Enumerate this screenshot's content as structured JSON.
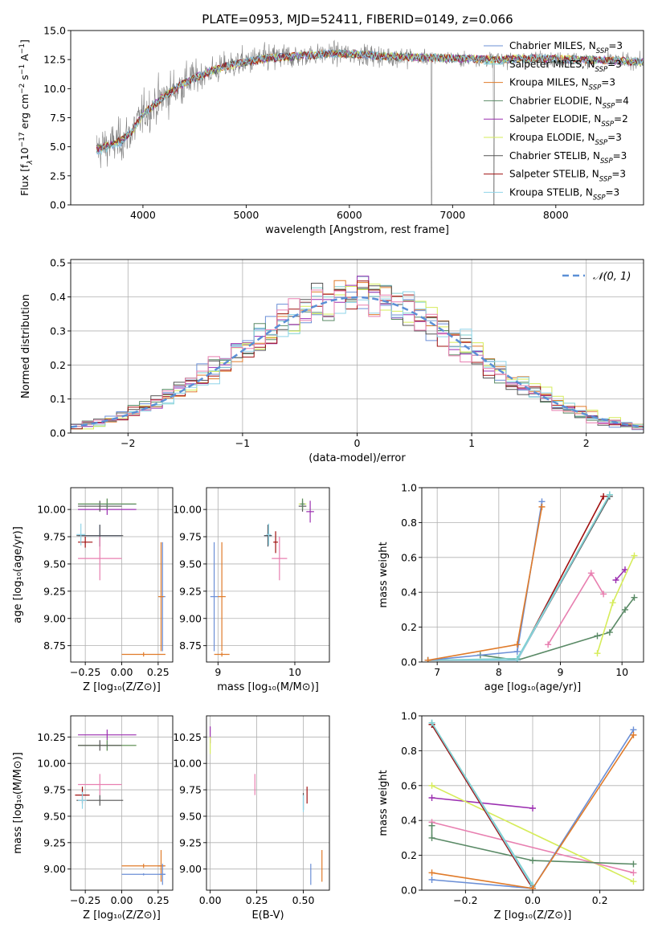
{
  "figure_title": "PLATE=0953, MJD=52411, FIBERID=0149, z=0.066",
  "colors": {
    "Chabrier MILES": "#6b8fd6",
    "Salpeter MILES": "#7fd0d0",
    "Kroupa MILES": "#e07b2a",
    "Chabrier ELODIE": "#5a8a66",
    "Salpeter ELODIE": "#9b2fb0",
    "Kroupa ELODIE": "#d6ec5a",
    "Chabrier STELIB": "#555555",
    "Salpeter STELIB": "#a01010",
    "Kroupa STELIB": "#8fd4e8",
    "ELODIE_pink": "#e87fb0",
    "observed": "#808080",
    "normal_fit": "#5b8fd6",
    "grid": "#b0b0b0"
  },
  "chart_data": [
    {
      "id": "spectrum",
      "type": "line",
      "title": "PLATE=0953, MJD=52411, FIBERID=0149, z=0.066",
      "xlabel": "wavelength [Angstrom, rest frame]",
      "ylabel": "Flux [f_λ 10^-17 erg cm^-2 s^-1 A^-1]",
      "ylabel_parts": [
        "Flux [f",
        "λ",
        "10",
        "−17",
        " erg cm",
        "−2",
        " s",
        "−1",
        " A",
        "−1",
        "]"
      ],
      "xlim": [
        3300,
        8850
      ],
      "ylim": [
        0,
        15
      ],
      "xticks": [
        4000,
        5000,
        6000,
        7000,
        8000
      ],
      "yticks": [
        0.0,
        2.5,
        5.0,
        7.5,
        10.0,
        12.5,
        15.0
      ],
      "grid": false,
      "legend_position": "right",
      "legend": [
        {
          "label": "Chabrier MILES, N",
          "sub": "SSP",
          "suffix": "=3",
          "color": "#6b8fd6"
        },
        {
          "label": "Salpeter MILES, N",
          "sub": "SSP",
          "suffix": "=3",
          "color": "#7fd0d0"
        },
        {
          "label": "Kroupa MILES, N",
          "sub": "SSP",
          "suffix": "=3",
          "color": "#e07b2a"
        },
        {
          "label": "Chabrier ELODIE, N",
          "sub": "SSP",
          "suffix": "=4",
          "color": "#5a8a66"
        },
        {
          "label": "Salpeter ELODIE, N",
          "sub": "SSP",
          "suffix": "=2",
          "color": "#9b2fb0"
        },
        {
          "label": "Kroupa ELODIE, N",
          "sub": "SSP",
          "suffix": "=3",
          "color": "#d6ec5a"
        },
        {
          "label": "Chabrier STELIB, N",
          "sub": "SSP",
          "suffix": "=3",
          "color": "#555555"
        },
        {
          "label": "Salpeter STELIB, N",
          "sub": "SSP",
          "suffix": "=3",
          "color": "#a01010"
        },
        {
          "label": "Kroupa STELIB, N",
          "sub": "SSP",
          "suffix": "=3",
          "color": "#8fd4e8"
        }
      ],
      "continuum": {
        "x": [
          3550,
          3700,
          3800,
          3900,
          4000,
          4200,
          4400,
          4600,
          4800,
          5000,
          5200,
          5500,
          5800,
          6000,
          6300,
          6600,
          7000,
          7400,
          7800,
          8200,
          8600,
          8850
        ],
        "y": [
          4.8,
          5.2,
          5.6,
          6.4,
          7.8,
          9.3,
          10.5,
          11.3,
          11.9,
          12.3,
          12.6,
          12.8,
          13.0,
          13.0,
          12.8,
          12.7,
          12.6,
          12.5,
          12.6,
          12.5,
          12.4,
          12.3
        ]
      }
    },
    {
      "id": "residuals",
      "type": "histogram",
      "xlabel": "(data-model)/error",
      "ylabel": "Normed distribution",
      "xlim": [
        -2.5,
        2.5
      ],
      "ylim": [
        0,
        0.51
      ],
      "xticks": [
        -2,
        -1,
        0,
        1,
        2
      ],
      "yticks": [
        0.0,
        0.1,
        0.2,
        0.3,
        0.4,
        0.5
      ],
      "grid": true,
      "legend_position": "top-right",
      "legend": [
        {
          "label": "𝒩(0, 1)",
          "style": "dashed",
          "color": "#5b8fd6"
        }
      ],
      "bin_width": 0.1
    },
    {
      "id": "age_vs_Z",
      "type": "errorbar",
      "xlabel": "Z [log₁₀(Z/Z⊙)]",
      "ylabel": "age  [log₁₀(age/yr)]",
      "xlim": [
        -0.35,
        0.35
      ],
      "ylim": [
        8.6,
        10.2
      ],
      "xticks": [
        -0.25,
        0.0,
        0.25
      ],
      "xticklabels": [
        "−0.25",
        "0.00",
        "0.25"
      ],
      "yticks": [
        8.75,
        9.0,
        9.25,
        9.5,
        9.75,
        10.0
      ],
      "grid": true,
      "points": [
        {
          "x": -0.1,
          "y": 10.05,
          "xerr": 0.2,
          "yerr": 0.05,
          "color": "#d6ec5a"
        },
        {
          "x": -0.1,
          "y": 10.0,
          "xerr": 0.2,
          "yerr": 0.05,
          "color": "#9b2fb0"
        },
        {
          "x": -0.15,
          "y": 10.03,
          "xerr": 0.15,
          "yerr": 0.05,
          "color": "#555555"
        },
        {
          "x": -0.1,
          "y": 10.05,
          "xerr": 0.2,
          "yerr": 0.05,
          "color": "#5a8a66"
        },
        {
          "x": -0.15,
          "y": 9.76,
          "xerr": 0.15,
          "yerr": 0.1,
          "color": "#6b8fd6"
        },
        {
          "x": -0.15,
          "y": 9.76,
          "xerr": 0.16,
          "yerr": 0.1,
          "color": "#555555"
        },
        {
          "x": -0.15,
          "y": 9.55,
          "xerr": 0.15,
          "yerr": 0.2,
          "color": "#e87fb0"
        },
        {
          "x": -0.25,
          "y": 9.7,
          "xerr": 0.05,
          "yerr": 0.05,
          "color": "#a01010"
        },
        {
          "x": -0.28,
          "y": 9.77,
          "xerr": 0.03,
          "yerr": 0.1,
          "color": "#8fd4e8"
        },
        {
          "x": 0.28,
          "y": 9.2,
          "xerr": 0.02,
          "yerr": 0.5,
          "color": "#6b8fd6"
        },
        {
          "x": 0.27,
          "y": 9.2,
          "xerr": 0.02,
          "yerr": 0.5,
          "color": "#e07b2a"
        },
        {
          "x": 0.15,
          "y": 8.67,
          "xerr": 0.15,
          "yerr": 0.02,
          "color": "#e07b2a"
        }
      ]
    },
    {
      "id": "age_vs_mass",
      "type": "errorbar",
      "xlabel": "mass [log₁₀(M/M⊙)]",
      "ylabel": "",
      "xlim": [
        8.85,
        10.45
      ],
      "ylim": [
        8.6,
        10.2
      ],
      "xticks": [
        9,
        10
      ],
      "yticks": [
        8.75,
        9.0,
        9.25,
        9.5,
        9.75,
        10.0
      ],
      "grid": true,
      "points": [
        {
          "x": 10.1,
          "y": 10.05,
          "xerr": 0.05,
          "yerr": 0.05,
          "color": "#d6ec5a"
        },
        {
          "x": 10.2,
          "y": 9.98,
          "xerr": 0.05,
          "yerr": 0.1,
          "color": "#9b2fb0"
        },
        {
          "x": 10.1,
          "y": 10.03,
          "xerr": 0.05,
          "yerr": 0.05,
          "color": "#555555"
        },
        {
          "x": 10.1,
          "y": 10.05,
          "xerr": 0.03,
          "yerr": 0.05,
          "color": "#5a8a66"
        },
        {
          "x": 9.65,
          "y": 9.76,
          "xerr": 0.05,
          "yerr": 0.1,
          "color": "#6b8fd6"
        },
        {
          "x": 9.65,
          "y": 9.76,
          "xerr": 0.05,
          "yerr": 0.1,
          "color": "#555555"
        },
        {
          "x": 9.8,
          "y": 9.55,
          "xerr": 0.1,
          "yerr": 0.2,
          "color": "#e87fb0"
        },
        {
          "x": 9.75,
          "y": 9.7,
          "xerr": 0.03,
          "yerr": 0.1,
          "color": "#a01010"
        },
        {
          "x": 9.66,
          "y": 9.77,
          "xerr": 0.03,
          "yerr": 0.1,
          "color": "#8fd4e8"
        },
        {
          "x": 8.95,
          "y": 9.2,
          "xerr": 0.05,
          "yerr": 0.5,
          "color": "#6b8fd6"
        },
        {
          "x": 9.05,
          "y": 9.2,
          "xerr": 0.05,
          "yerr": 0.5,
          "color": "#e07b2a"
        },
        {
          "x": 9.05,
          "y": 8.67,
          "xerr": 0.1,
          "yerr": 0.02,
          "color": "#e07b2a"
        }
      ]
    },
    {
      "id": "weight_vs_age",
      "type": "line",
      "xlabel": "age  [log₁₀(age/yr)]",
      "ylabel": "mass weight",
      "xlim": [
        6.75,
        10.35
      ],
      "ylim": [
        0,
        1
      ],
      "xticks": [
        7,
        8,
        9,
        10
      ],
      "yticks": [
        0.0,
        0.2,
        0.4,
        0.6,
        0.8,
        1.0
      ],
      "grid": true,
      "series": [
        {
          "color": "#5a8a66",
          "x": [
            7.7,
            8.3,
            9.6,
            9.8,
            10.05,
            10.2
          ],
          "y": [
            0.04,
            0.01,
            0.15,
            0.17,
            0.3,
            0.37
          ]
        },
        {
          "color": "#9b2fb0",
          "x": [
            9.9,
            10.05
          ],
          "y": [
            0.47,
            0.53
          ]
        },
        {
          "color": "#d6ec5a",
          "x": [
            9.6,
            9.85,
            10.2
          ],
          "y": [
            0.05,
            0.34,
            0.61
          ]
        },
        {
          "color": "#e87fb0",
          "x": [
            8.8,
            9.5,
            9.7
          ],
          "y": [
            0.1,
            0.51,
            0.39
          ]
        },
        {
          "color": "#555555",
          "x": [
            6.85,
            8.3,
            9.8
          ],
          "y": [
            0.01,
            0.01,
            0.95
          ]
        },
        {
          "color": "#a01010",
          "x": [
            6.85,
            8.3,
            9.7
          ],
          "y": [
            0.01,
            0.01,
            0.95
          ]
        },
        {
          "color": "#8fd4e8",
          "x": [
            6.85,
            8.3,
            9.8
          ],
          "y": [
            0.01,
            0.01,
            0.96
          ]
        },
        {
          "color": "#7fd0d0",
          "x": [
            6.85,
            8.3,
            9.8
          ],
          "y": [
            0.01,
            0.02,
            0.96
          ]
        },
        {
          "color": "#6b8fd6",
          "x": [
            6.85,
            8.3,
            8.7
          ],
          "y": [
            0.01,
            0.06,
            0.92
          ]
        },
        {
          "color": "#e07b2a",
          "x": [
            6.85,
            8.3,
            8.7
          ],
          "y": [
            0.01,
            0.1,
            0.89
          ]
        }
      ]
    },
    {
      "id": "mass_vs_Z",
      "type": "errorbar",
      "xlabel": "Z [log₁₀(Z/Z⊙)]",
      "ylabel": "mass [log₁₀(M/M⊙)]",
      "xlim": [
        -0.35,
        0.35
      ],
      "ylim": [
        8.8,
        10.45
      ],
      "xticks": [
        -0.25,
        0.0,
        0.25
      ],
      "xticklabels": [
        "−0.25",
        "0.00",
        "0.25"
      ],
      "yticks": [
        9.0,
        9.25,
        9.5,
        9.75,
        10.0,
        10.25
      ],
      "grid": true,
      "points": [
        {
          "x": -0.1,
          "y": 10.27,
          "xerr": 0.2,
          "yerr": 0.05,
          "color": "#9b2fb0"
        },
        {
          "x": -0.1,
          "y": 10.17,
          "xerr": 0.2,
          "yerr": 0.05,
          "color": "#d6ec5a"
        },
        {
          "x": -0.1,
          "y": 10.17,
          "xerr": 0.2,
          "yerr": 0.05,
          "color": "#5a8a66"
        },
        {
          "x": -0.15,
          "y": 10.17,
          "xerr": 0.15,
          "yerr": 0.05,
          "color": "#555555"
        },
        {
          "x": -0.15,
          "y": 9.8,
          "xerr": 0.15,
          "yerr": 0.1,
          "color": "#e87fb0"
        },
        {
          "x": -0.27,
          "y": 9.7,
          "xerr": 0.05,
          "yerr": 0.08,
          "color": "#a01010"
        },
        {
          "x": -0.15,
          "y": 9.65,
          "xerr": 0.16,
          "yerr": 0.05,
          "color": "#555555"
        },
        {
          "x": -0.27,
          "y": 9.65,
          "xerr": 0.03,
          "yerr": 0.08,
          "color": "#8fd4e8"
        },
        {
          "x": 0.27,
          "y": 9.03,
          "xerr": 0.02,
          "yerr": 0.15,
          "color": "#e07b2a"
        },
        {
          "x": 0.15,
          "y": 9.03,
          "xerr": 0.15,
          "yerr": 0.02,
          "color": "#e07b2a"
        },
        {
          "x": 0.28,
          "y": 8.95,
          "xerr": 0.02,
          "yerr": 0.1,
          "color": "#6b8fd6"
        },
        {
          "x": 0.15,
          "y": 8.95,
          "xerr": 0.15,
          "yerr": 0.01,
          "color": "#6b8fd6"
        }
      ]
    },
    {
      "id": "mass_vs_ebv",
      "type": "errorbar",
      "xlabel": "E(B-V)",
      "ylabel": "",
      "xlim": [
        -0.02,
        0.64
      ],
      "ylim": [
        8.8,
        10.45
      ],
      "xticks": [
        0.0,
        0.25,
        0.5
      ],
      "xticklabels": [
        "0.00",
        "0.25",
        "0.50"
      ],
      "yticks": [
        9.0,
        9.25,
        9.5,
        9.75,
        10.0,
        10.25
      ],
      "grid": true,
      "points": [
        {
          "x": 0.0,
          "y": 10.27,
          "xerr": 0.0,
          "yerr": 0.08,
          "color": "#9b2fb0"
        },
        {
          "x": 0.0,
          "y": 10.17,
          "xerr": 0.0,
          "yerr": 0.08,
          "color": "#d6ec5a"
        },
        {
          "x": 0.24,
          "y": 9.8,
          "xerr": 0.0,
          "yerr": 0.1,
          "color": "#e87fb0"
        },
        {
          "x": 0.52,
          "y": 9.7,
          "xerr": 0.0,
          "yerr": 0.08,
          "color": "#a01010"
        },
        {
          "x": 0.5,
          "y": 9.64,
          "xerr": 0.0,
          "yerr": 0.08,
          "color": "#555555"
        },
        {
          "x": 0.5,
          "y": 9.62,
          "xerr": 0.0,
          "yerr": 0.08,
          "color": "#8fd4e8"
        },
        {
          "x": 0.6,
          "y": 9.03,
          "xerr": 0.0,
          "yerr": 0.15,
          "color": "#e07b2a"
        },
        {
          "x": 0.54,
          "y": 8.95,
          "xerr": 0.0,
          "yerr": 0.1,
          "color": "#6b8fd6"
        }
      ]
    },
    {
      "id": "weight_vs_Z",
      "type": "line",
      "xlabel": "Z [log₁₀(Z/Z⊙)]",
      "ylabel": "mass weight",
      "xlim": [
        -0.33,
        0.33
      ],
      "ylim": [
        0,
        1
      ],
      "xticks": [
        -0.2,
        0.0,
        0.2
      ],
      "xticklabels": [
        "−0.2",
        "0.0",
        "0.2"
      ],
      "yticks": [
        0.0,
        0.2,
        0.4,
        0.6,
        0.8,
        1.0
      ],
      "grid": true,
      "series": [
        {
          "color": "#9b2fb0",
          "x": [
            -0.3,
            0.0
          ],
          "y": [
            0.53,
            0.47
          ]
        },
        {
          "color": "#d6ec5a",
          "x": [
            -0.3,
            0.3
          ],
          "y": [
            0.6,
            0.05
          ]
        },
        {
          "color": "#e87fb0",
          "x": [
            -0.3,
            0.3
          ],
          "y": [
            0.39,
            0.1
          ]
        },
        {
          "color": "#5a8a66",
          "x": [
            -0.3,
            -0.3,
            0.0,
            0.3
          ],
          "y": [
            0.37,
            0.3,
            0.17,
            0.15
          ]
        },
        {
          "color": "#555555",
          "x": [
            -0.3,
            0.0
          ],
          "y": [
            0.95,
            0.01
          ]
        },
        {
          "color": "#a01010",
          "x": [
            -0.3,
            0.0
          ],
          "y": [
            0.95,
            0.01
          ]
        },
        {
          "color": "#8fd4e8",
          "x": [
            -0.3,
            0.0
          ],
          "y": [
            0.96,
            0.02
          ]
        },
        {
          "color": "#7fd0d0",
          "x": [
            -0.3,
            0.0
          ],
          "y": [
            0.96,
            0.03
          ]
        },
        {
          "color": "#6b8fd6",
          "x": [
            -0.3,
            0.0,
            0.3
          ],
          "y": [
            0.06,
            0.01,
            0.92
          ]
        },
        {
          "color": "#e07b2a",
          "x": [
            -0.3,
            0.0,
            0.3
          ],
          "y": [
            0.1,
            0.01,
            0.89
          ]
        }
      ]
    }
  ]
}
